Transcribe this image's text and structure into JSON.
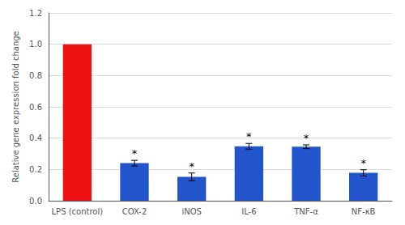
{
  "chart_data": {
    "type": "bar",
    "categories": [
      "LPS (control)",
      "COX-2",
      "iNOS",
      "IL-6",
      "TNF-α",
      "NF-κB"
    ],
    "values": [
      1.0,
      0.24,
      0.152,
      0.348,
      0.345,
      0.178
    ],
    "errors": [
      0.0,
      0.018,
      0.025,
      0.018,
      0.012,
      0.02
    ],
    "colors": [
      "#ee1111",
      "#2255cc",
      "#2255cc",
      "#2255cc",
      "#2255cc",
      "#2255cc"
    ],
    "ylabel": "Relative gene expression fold change",
    "ylim": [
      0,
      1.2
    ],
    "yticks": [
      {
        "value": 0,
        "label": "0.0"
      },
      0.2,
      0.4,
      0.6,
      0.8,
      {
        "value": 1.0,
        "label": "1.0"
      },
      1.2
    ],
    "grid": true,
    "annotations": [
      {
        "text": "*",
        "category": "COX-2"
      },
      {
        "text": "*",
        "category": "iNOS"
      },
      {
        "text": "*",
        "category": "IL-6"
      },
      {
        "text": "*",
        "category": "TNF-α"
      },
      {
        "text": "*",
        "category": "NF-κB"
      }
    ]
  }
}
